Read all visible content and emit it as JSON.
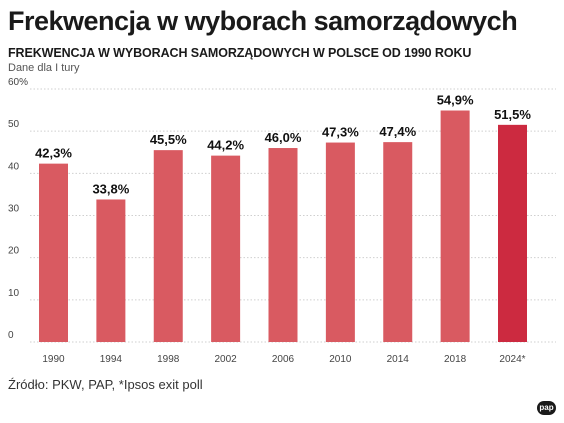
{
  "header": {
    "title": "Frekwencja w wyborach samorządowych",
    "subtitle": "FREKWENCJA W WYBORACH SAMORZĄDOWYCH W POLSCE OD 1990 ROKU",
    "note": "Dane dla I tury"
  },
  "footer": {
    "source": "Źródło: PKW, PAP, *Ipsos exit poll",
    "logo_text": "pap"
  },
  "colors": {
    "bar": "#d95a61",
    "bar_highlight": "#cc2a40",
    "grid": "#cfcfcf"
  },
  "chart_data": {
    "type": "bar",
    "categories": [
      "1990",
      "1994",
      "1998",
      "2002",
      "2006",
      "2010",
      "2014",
      "2018",
      "2024*"
    ],
    "values": [
      42.3,
      33.8,
      45.5,
      44.2,
      46.0,
      47.3,
      47.4,
      54.9,
      51.5
    ],
    "value_labels": [
      "42,3%",
      "33,8%",
      "45,5%",
      "44,2%",
      "46,0%",
      "47,3%",
      "47,4%",
      "54,9%",
      "51,5%"
    ],
    "highlight_index": 8,
    "yticks": [
      0,
      10,
      20,
      30,
      40,
      50,
      60
    ],
    "ytick_labels": [
      "0",
      "10",
      "20",
      "30",
      "40",
      "50",
      "60%"
    ],
    "ylim": [
      0,
      60
    ],
    "grid": true
  }
}
